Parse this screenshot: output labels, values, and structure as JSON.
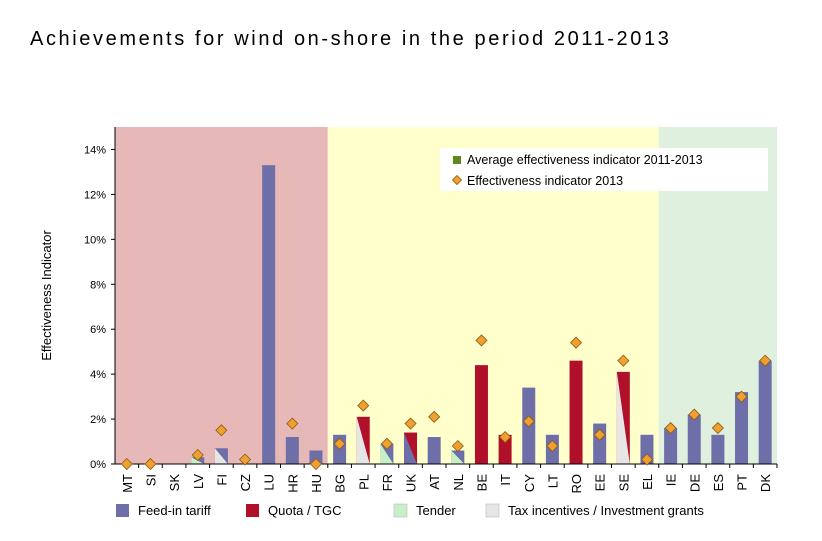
{
  "title": "Achievements for wind on-shore in the period 2011-2013",
  "chart_data": {
    "type": "bar",
    "ylabel": "Effectiveness Indicator",
    "ylim": [
      0,
      0.15
    ],
    "yticks": [
      "0%",
      "2%",
      "4%",
      "6%",
      "8%",
      "10%",
      "12%",
      "14%"
    ],
    "categories": [
      "MT",
      "SI",
      "SK",
      "LV",
      "FI",
      "CZ",
      "LU",
      "HR",
      "HU",
      "BG",
      "PL",
      "FR",
      "UK",
      "AT",
      "NL",
      "BE",
      "IT",
      "CY",
      "LT",
      "RO",
      "EE",
      "SE",
      "EL",
      "IE",
      "DE",
      "ES",
      "PT",
      "DK"
    ],
    "series": [
      {
        "name": "Average effectiveness indicator 2011-2013",
        "values": [
          0.0,
          0.0,
          0.0,
          0.003,
          0.007,
          0.0,
          0.133,
          0.012,
          0.006,
          0.013,
          0.021,
          0.009,
          0.014,
          0.012,
          0.006,
          0.044,
          0.013,
          0.034,
          0.013,
          0.046,
          0.018,
          0.041,
          0.013,
          0.016,
          0.022,
          0.013,
          0.032,
          0.046
        ]
      },
      {
        "name": "Effectiveness indicator 2013",
        "values": [
          0.0,
          0.0,
          null,
          0.004,
          0.015,
          0.002,
          null,
          0.018,
          0.0,
          0.009,
          0.026,
          0.009,
          0.018,
          0.021,
          0.008,
          0.055,
          0.012,
          0.019,
          0.008,
          0.054,
          0.013,
          0.046,
          0.002,
          0.016,
          0.022,
          0.016,
          0.03,
          0.046
        ]
      }
    ],
    "support_scheme": [
      "FIT",
      "FIT",
      "FIT",
      "FIT",
      "FIT",
      "FIT",
      "FIT",
      "FIT",
      "FIT",
      "FIT",
      "Q",
      "FIT",
      "Q",
      "FIT",
      "FIT",
      "Q",
      "Q",
      "FIT",
      "FIT",
      "Q",
      "FIT",
      "Q",
      "FIT",
      "FIT",
      "FIT",
      "FIT",
      "FIT",
      "FIT"
    ],
    "secondary_scheme": [
      null,
      null,
      null,
      "T",
      "G",
      null,
      null,
      null,
      null,
      null,
      "G",
      "T",
      "FIT",
      null,
      "T",
      null,
      null,
      null,
      null,
      null,
      null,
      "G",
      null,
      null,
      null,
      null,
      null,
      null
    ],
    "background_zones": [
      {
        "from": 0,
        "to": 8,
        "color": "#e6b8b8"
      },
      {
        "from": 9,
        "to": 22,
        "color": "#ffffcc"
      },
      {
        "from": 23,
        "to": 27,
        "color": "#dff0df"
      }
    ],
    "inner_legend": [
      {
        "label": "Average effectiveness indicator 2011-2013",
        "marker": "square",
        "color": "#5c8a1e"
      },
      {
        "label": "Effectiveness indicator 2013",
        "marker": "diamond",
        "color": "#f0a030"
      }
    ],
    "bottom_legend": [
      {
        "label": "Feed-in tariff",
        "color": "#6e6ea8"
      },
      {
        "label": "Quota / TGC",
        "color": "#b0102a"
      },
      {
        "label": "Tender",
        "color": "#c8f0c8"
      },
      {
        "label": "Tax incentives / Investment grants",
        "color": "#e6e6e6"
      }
    ]
  }
}
